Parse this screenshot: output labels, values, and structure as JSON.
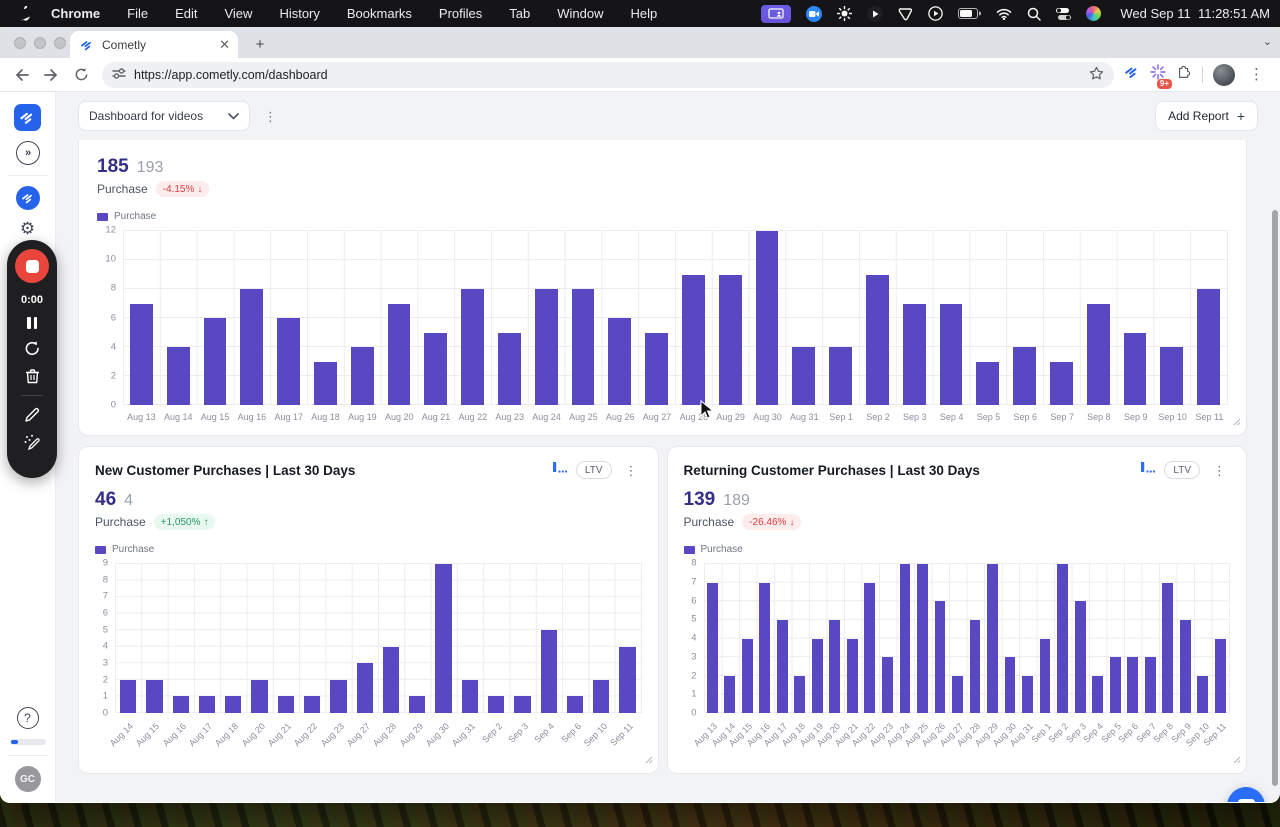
{
  "menu_bar": {
    "items": [
      "Chrome",
      "File",
      "Edit",
      "View",
      "History",
      "Bookmarks",
      "Profiles",
      "Tab",
      "Window",
      "Help"
    ],
    "clock": "Wed Sep 11  11:28:51 AM"
  },
  "browser": {
    "tab_title": "Cometly",
    "close_glyph": "✕",
    "new_tab_glyph": "+",
    "url": "https://app.cometly.com/dashboard",
    "extension_badge": "9+"
  },
  "app": {
    "dashboard_selector": "Dashboard for videos",
    "add_report_label": "Add Report",
    "add_report_plus": "+",
    "ltv_label": "LTV",
    "kebab_glyph": "⋮",
    "chevron_glyph": "»",
    "help_glyph": "?",
    "avatar_initials": "GC"
  },
  "recorder": {
    "time": "0:00"
  },
  "chart_data": [
    {
      "type": "bar",
      "title": "",
      "primary_value": "185",
      "comparison_value": "193",
      "metric_label": "Purchase",
      "change": "-4.15%",
      "change_arrow": "↓",
      "change_direction": "down",
      "legend": "Purchase",
      "bar_color": "#5849c2",
      "ylim": [
        0,
        12
      ],
      "yticks": [
        0,
        2,
        4,
        6,
        8,
        10,
        12
      ],
      "xlabel_rotation": "flat",
      "grid": true,
      "categories": [
        "Aug 13",
        "Aug 14",
        "Aug 15",
        "Aug 16",
        "Aug 17",
        "Aug 18",
        "Aug 19",
        "Aug 20",
        "Aug 21",
        "Aug 22",
        "Aug 23",
        "Aug 24",
        "Aug 25",
        "Aug 26",
        "Aug 27",
        "Aug 28",
        "Aug 29",
        "Aug 30",
        "Aug 31",
        "Sep 1",
        "Sep 2",
        "Sep 3",
        "Sep 4",
        "Sep 5",
        "Sep 6",
        "Sep 7",
        "Sep 8",
        "Sep 9",
        "Sep 10",
        "Sep 11"
      ],
      "values": [
        7,
        4,
        6,
        8,
        6,
        3,
        4,
        7,
        5,
        8,
        5,
        8,
        8,
        6,
        5,
        9,
        9,
        12,
        4,
        4,
        9,
        7,
        7,
        3,
        4,
        3,
        7,
        5,
        4,
        8
      ]
    },
    {
      "type": "bar",
      "title": "New Customer Purchases | Last 30 Days",
      "primary_value": "46",
      "comparison_value": "4",
      "metric_label": "Purchase",
      "change": "+1,050%",
      "change_arrow": "↑",
      "change_direction": "up",
      "legend": "Purchase",
      "bar_color": "#5849c2",
      "ylim": [
        0,
        9
      ],
      "yticks": [
        0,
        1,
        2,
        3,
        4,
        5,
        6,
        7,
        8,
        9
      ],
      "xlabel_rotation": "rotated",
      "grid": true,
      "categories": [
        "Aug 14",
        "Aug 15",
        "Aug 16",
        "Aug 17",
        "Aug 18",
        "Aug 20",
        "Aug 21",
        "Aug 22",
        "Aug 23",
        "Aug 27",
        "Aug 28",
        "Aug 29",
        "Aug 30",
        "Aug 31",
        "Sep 2",
        "Sep 3",
        "Sep 4",
        "Sep 6",
        "Sep 10",
        "Sep 11"
      ],
      "values": [
        2,
        2,
        1,
        1,
        1,
        2,
        1,
        1,
        2,
        3,
        4,
        1,
        9,
        2,
        1,
        1,
        5,
        1,
        2,
        4
      ]
    },
    {
      "type": "bar",
      "title": "Returning Customer Purchases | Last 30 Days",
      "primary_value": "139",
      "comparison_value": "189",
      "metric_label": "Purchase",
      "change": "-26.46%",
      "change_arrow": "↓",
      "change_direction": "down",
      "legend": "Purchase",
      "bar_color": "#5849c2",
      "ylim": [
        0,
        8
      ],
      "yticks": [
        0,
        1,
        2,
        3,
        4,
        5,
        6,
        7,
        8
      ],
      "xlabel_rotation": "rotated",
      "grid": true,
      "categories": [
        "Aug 13",
        "Aug 14",
        "Aug 15",
        "Aug 16",
        "Aug 17",
        "Aug 18",
        "Aug 19",
        "Aug 20",
        "Aug 21",
        "Aug 22",
        "Aug 23",
        "Aug 24",
        "Aug 25",
        "Aug 26",
        "Aug 27",
        "Aug 28",
        "Aug 29",
        "Aug 30",
        "Aug 31",
        "Sep 1",
        "Sep 2",
        "Sep 3",
        "Sep 4",
        "Sep 5",
        "Sep 6",
        "Sep 7",
        "Sep 8",
        "Sep 9",
        "Sep 10",
        "Sep 11"
      ],
      "values": [
        7,
        2,
        4,
        7,
        5,
        2,
        4,
        5,
        4,
        7,
        3,
        8,
        8,
        6,
        2,
        5,
        8,
        3,
        2,
        4,
        8,
        6,
        2,
        3,
        3,
        3,
        7,
        5,
        2,
        4
      ]
    }
  ]
}
